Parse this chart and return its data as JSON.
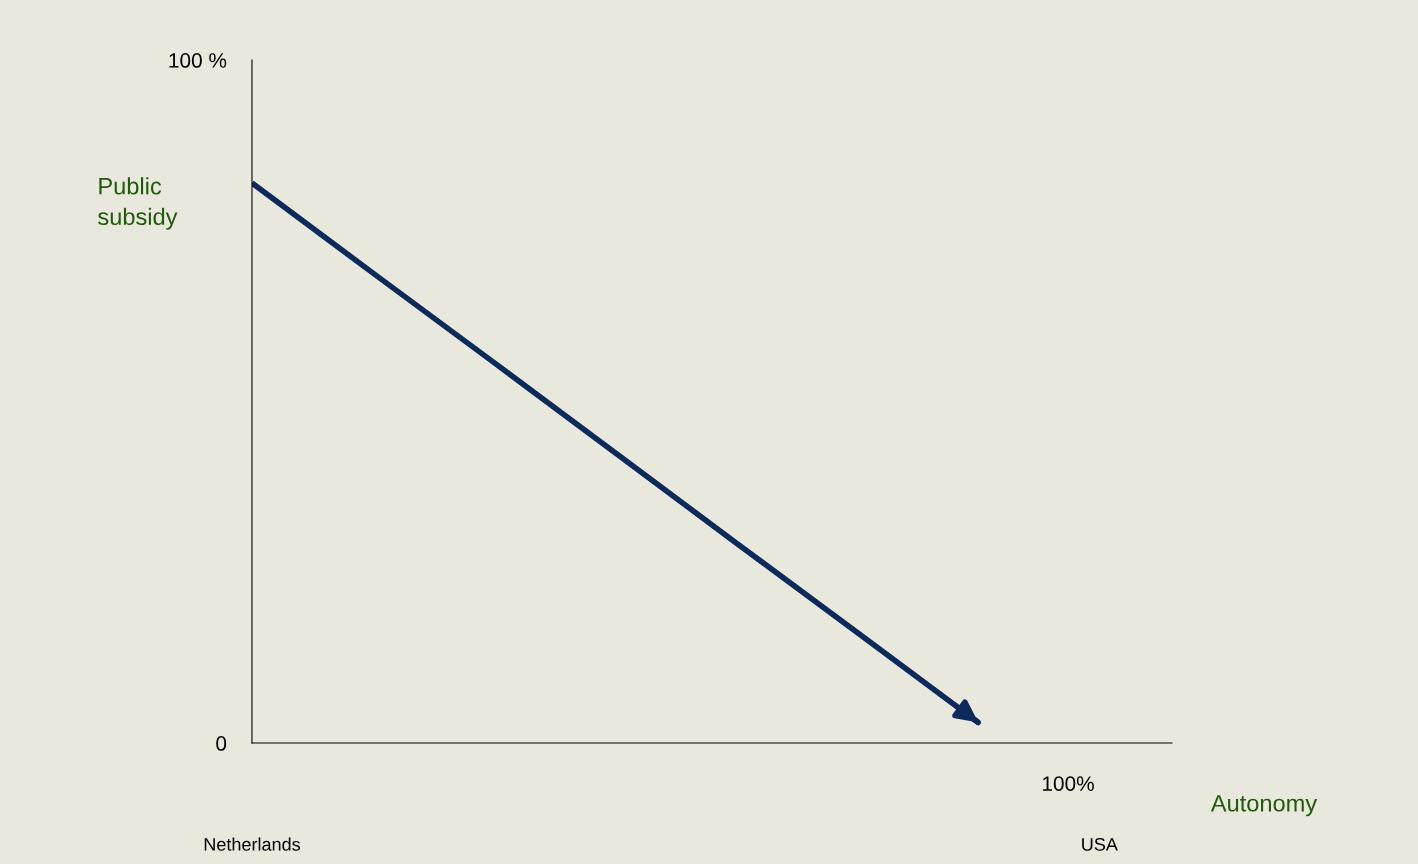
{
  "chart_data": {
    "type": "line",
    "xlabel": "Autonomy",
    "ylabel": "Public\nsubsidy",
    "categories": [
      "Netherlands",
      null,
      null,
      null,
      null,
      null,
      null,
      "USA"
    ],
    "series": [
      {
        "color": "#0d2a5c",
        "values": [
          82,
          68.8,
          55.7,
          42.5,
          29.3,
          16.2,
          3,
          null
        ]
      }
    ],
    "ylim": [
      0,
      100
    ],
    "yticks": [
      {
        "value": 0,
        "label": "0"
      },
      {
        "value": 100,
        "label": "100 %"
      }
    ],
    "grid": false,
    "legend": false,
    "marker": "none",
    "line_style": "solid",
    "annotations": [
      "100%"
    ]
  }
}
